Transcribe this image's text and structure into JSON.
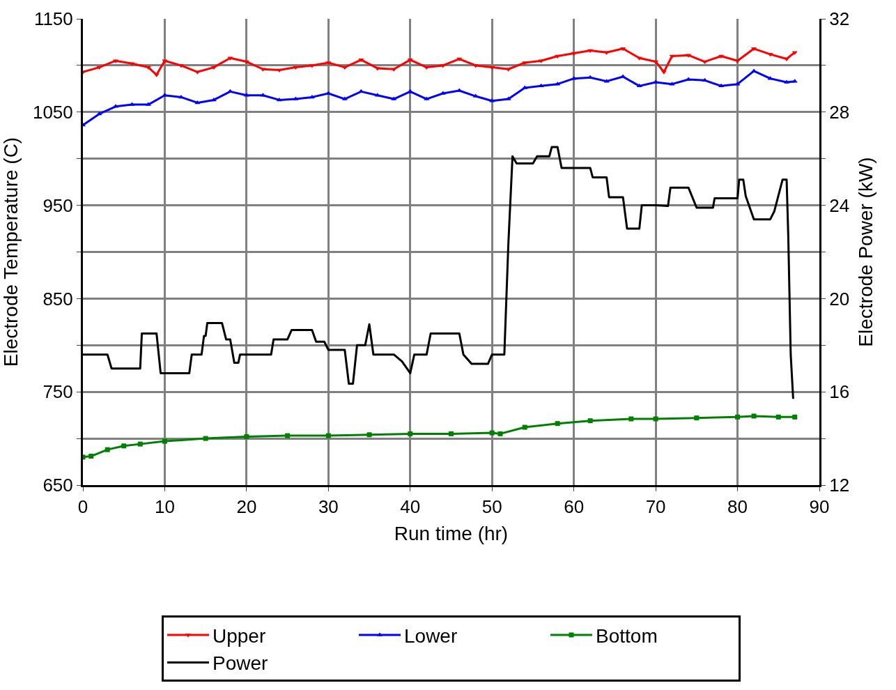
{
  "chart_data": {
    "type": "line",
    "xlabel": "Run time (hr)",
    "ylabel": "Electrode Temperature (C)",
    "y2label": "Electrode Power (kW)",
    "xlim": [
      0,
      90
    ],
    "xticks": [
      0,
      10,
      20,
      30,
      40,
      50,
      60,
      70,
      80,
      90
    ],
    "ylim": [
      650,
      1150
    ],
    "yticks": [
      650,
      {
        "value": 700,
        "label": null
      },
      750,
      {
        "value": 800,
        "label": null
      },
      850,
      {
        "value": 900,
        "label": null
      },
      950,
      {
        "value": 1000,
        "label": null
      },
      1050,
      {
        "value": 1100,
        "label": null
      },
      1150
    ],
    "y2lim": [
      12,
      32
    ],
    "y2ticks": [
      12,
      {
        "value": 14,
        "label": null
      },
      16,
      {
        "value": 18,
        "label": null
      },
      20,
      {
        "value": 22,
        "label": null
      },
      24,
      {
        "value": 26,
        "label": null
      },
      28,
      {
        "value": 30,
        "label": null
      },
      32
    ],
    "grid": true,
    "legend": "bottom",
    "series": [
      {
        "name": "Upper",
        "color": "#ff0000",
        "marker": "triangle-down",
        "x": [
          0,
          2,
          4,
          6,
          8,
          9,
          10,
          12,
          14,
          16,
          18,
          20,
          22,
          24,
          26,
          28,
          30,
          32,
          34,
          36,
          38,
          40,
          42,
          44,
          46,
          48,
          50,
          52,
          54,
          56,
          58,
          60,
          62,
          64,
          66,
          68,
          70,
          71,
          72,
          74,
          76,
          78,
          80,
          82,
          84,
          86,
          87
        ],
        "values": [
          1093,
          1098,
          1105,
          1102,
          1098,
          1090,
          1105,
          1100,
          1093,
          1098,
          1108,
          1104,
          1096,
          1095,
          1098,
          1100,
          1103,
          1098,
          1106,
          1097,
          1096,
          1106,
          1098,
          1100,
          1107,
          1100,
          1098,
          1096,
          1103,
          1105,
          1110,
          1113,
          1116,
          1114,
          1118,
          1108,
          1104,
          1093,
          1110,
          1111,
          1104,
          1110,
          1105,
          1118,
          1112,
          1107,
          1114
        ]
      },
      {
        "name": "Lower",
        "color": "#0000ff",
        "marker": "triangle-up",
        "x": [
          0,
          2,
          4,
          6,
          8,
          10,
          12,
          14,
          16,
          18,
          20,
          22,
          24,
          26,
          28,
          30,
          32,
          34,
          36,
          38,
          40,
          42,
          44,
          46,
          48,
          50,
          52,
          54,
          56,
          58,
          60,
          62,
          64,
          66,
          68,
          70,
          72,
          74,
          76,
          78,
          80,
          82,
          84,
          86,
          87
        ],
        "values": [
          1036,
          1048,
          1056,
          1058,
          1058,
          1068,
          1066,
          1060,
          1063,
          1072,
          1068,
          1068,
          1063,
          1064,
          1066,
          1070,
          1064,
          1072,
          1068,
          1064,
          1072,
          1064,
          1070,
          1073,
          1067,
          1062,
          1064,
          1076,
          1078,
          1080,
          1086,
          1087,
          1083,
          1088,
          1078,
          1082,
          1080,
          1085,
          1084,
          1078,
          1080,
          1094,
          1086,
          1082,
          1083
        ]
      },
      {
        "name": "Bottom",
        "color": "#008000",
        "marker": "square",
        "x": [
          0,
          1,
          3,
          5,
          7,
          10,
          15,
          20,
          25,
          30,
          35,
          40,
          45,
          50,
          51,
          54,
          58,
          62,
          67,
          70,
          75,
          80,
          82,
          85,
          87
        ],
        "values": [
          680,
          681,
          688,
          692,
          694,
          697,
          700,
          702,
          703,
          703,
          704,
          705,
          705,
          706,
          705,
          712,
          716,
          719,
          721,
          721,
          722,
          723,
          724,
          723,
          723
        ]
      },
      {
        "name": "Power",
        "color": "#000000",
        "marker": "none",
        "axis": "y2",
        "x": [
          0,
          3,
          3.5,
          7,
          7.2,
          9,
          9.5,
          13,
          13.3,
          14.5,
          14.8,
          15,
          15.2,
          17,
          17.5,
          18,
          18.5,
          19,
          19.2,
          23,
          23.3,
          25,
          25.5,
          28,
          28.5,
          29.5,
          30,
          32,
          32.5,
          33,
          33.5,
          34.5,
          35,
          35.5,
          38,
          39,
          40,
          40.5,
          42,
          42.5,
          46,
          46.5,
          47.5,
          49.5,
          50,
          51.5,
          52,
          52.5,
          53,
          55,
          55.5,
          57,
          57.3,
          58,
          58.5,
          62,
          62.3,
          64,
          64.3,
          66,
          66.5,
          68,
          68.3,
          70,
          71.5,
          71.8,
          74,
          75,
          77,
          77.2,
          80,
          80.2,
          80.7,
          81,
          82,
          84,
          84.5,
          85.5,
          86,
          86.2,
          86.5,
          86.8
        ],
        "values": [
          17.6,
          17.6,
          17.0,
          17.0,
          18.5,
          18.5,
          16.8,
          16.8,
          17.6,
          17.6,
          18.4,
          18.4,
          18.95,
          18.95,
          18.25,
          18.25,
          17.25,
          17.25,
          17.6,
          17.6,
          18.25,
          18.25,
          18.65,
          18.65,
          18.15,
          18.15,
          17.8,
          17.8,
          16.35,
          16.35,
          18.0,
          18.0,
          18.9,
          17.6,
          17.6,
          17.3,
          16.8,
          17.6,
          17.6,
          18.5,
          18.5,
          17.6,
          17.2,
          17.2,
          17.6,
          17.6,
          22.4,
          26.1,
          25.8,
          25.8,
          26.1,
          26.1,
          26.5,
          26.5,
          25.6,
          25.6,
          25.2,
          25.2,
          24.35,
          24.35,
          23.0,
          23.0,
          24.0,
          24.0,
          23.97,
          24.76,
          24.76,
          23.9,
          23.9,
          24.3,
          24.3,
          25.1,
          25.1,
          24.4,
          23.4,
          23.4,
          23.75,
          25.1,
          25.1,
          22.7,
          17.6,
          15.7
        ]
      }
    ]
  }
}
